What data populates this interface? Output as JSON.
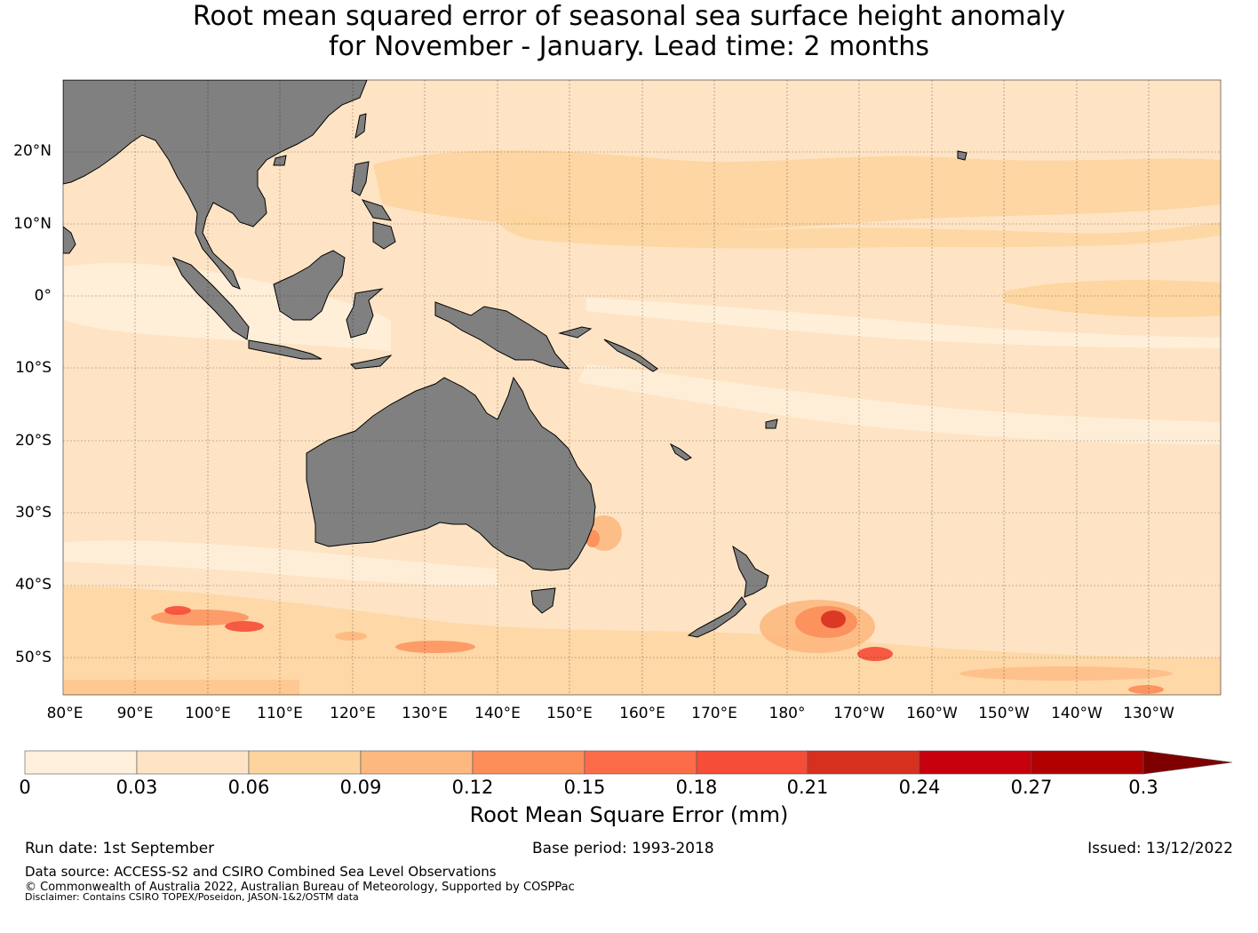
{
  "title": {
    "line1": "Root mean squared error of seasonal sea surface height anomaly",
    "line2": "for November - January. Lead time: 2 months"
  },
  "map": {
    "latitude_labels": [
      "20°N",
      "10°N",
      "0°",
      "10°S",
      "20°S",
      "30°S",
      "40°S",
      "50°S"
    ],
    "longitude_labels": [
      "80°E",
      "90°E",
      "100°E",
      "110°E",
      "120°E",
      "130°E",
      "140°E",
      "150°E",
      "160°E",
      "170°E",
      "180°",
      "170°W",
      "160°W",
      "150°W",
      "140°W",
      "130°W"
    ],
    "extent": {
      "lon_min": 80,
      "lon_max": 240,
      "lat_min": -55,
      "lat_max": 30
    },
    "land_color": "#808080",
    "gridlines": true
  },
  "colorbar": {
    "label": "Root Mean Square Error (mm)",
    "ticks": [
      "0",
      "0.03",
      "0.06",
      "0.09",
      "0.12",
      "0.15",
      "0.18",
      "0.21",
      "0.24",
      "0.27",
      "0.3"
    ],
    "colors": [
      "#fff0dc",
      "#fee4c4",
      "#fdd49e",
      "#fdb87f",
      "#fc8d59",
      "#fd6c49",
      "#f54d38",
      "#d7301f",
      "#c6000c",
      "#b00000",
      "#7f0000"
    ],
    "extend": "max"
  },
  "footer": {
    "run_date": "Run date: 1st September",
    "base_period": "Base period: 1993-2018",
    "issued": "Issued: 13/12/2022",
    "source": "Data source: ACCESS-S2 and CSIRO Combined Sea Level Observations",
    "copyright": "© Commonwealth of Australia 2022, Australian Bureau of Meteorology, Supported by COSPPac",
    "disclaimer": "Disclaimer: Contains CSIRO TOPEX/Poseidon, JASON-1&2/OSTM data"
  }
}
